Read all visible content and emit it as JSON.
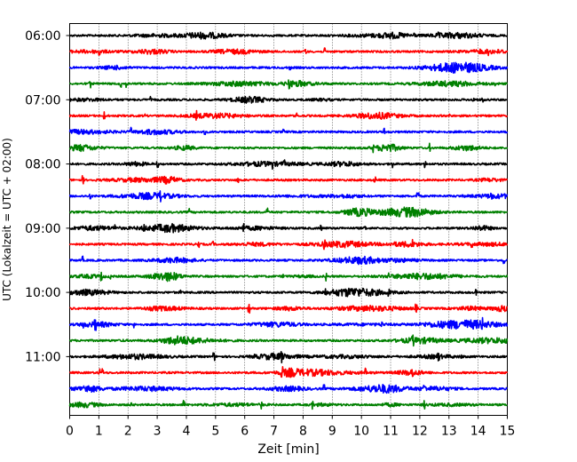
{
  "chart_data": {
    "type": "line",
    "xlabel": "Zeit  [min]",
    "ylabel": "UTC (Lokalzeit = UTC + 02:00)",
    "xlim": [
      0,
      15
    ],
    "x_ticks": [
      "0",
      "1",
      "2",
      "3",
      "4",
      "5",
      "6",
      "7",
      "8",
      "9",
      "10",
      "11",
      "12",
      "13",
      "14",
      "15"
    ],
    "y_ticks": [
      "06:00",
      "07:00",
      "08:00",
      "09:00",
      "10:00",
      "11:00"
    ],
    "grid": "vertical dotted lines at each minute",
    "row_minutes": 15,
    "start_time": "06:00",
    "trace_colors": [
      "#000000",
      "#ff0000",
      "#0000ff",
      "#008000"
    ],
    "rows": [
      {
        "start": "06:00",
        "color": "#000000"
      },
      {
        "start": "06:15",
        "color": "#ff0000"
      },
      {
        "start": "06:30",
        "color": "#0000ff"
      },
      {
        "start": "06:45",
        "color": "#008000"
      },
      {
        "start": "07:00",
        "color": "#000000"
      },
      {
        "start": "07:15",
        "color": "#ff0000"
      },
      {
        "start": "07:30",
        "color": "#0000ff"
      },
      {
        "start": "07:45",
        "color": "#008000"
      },
      {
        "start": "08:00",
        "color": "#000000"
      },
      {
        "start": "08:15",
        "color": "#ff0000"
      },
      {
        "start": "08:30",
        "color": "#0000ff"
      },
      {
        "start": "08:45",
        "color": "#008000"
      },
      {
        "start": "09:00",
        "color": "#000000"
      },
      {
        "start": "09:15",
        "color": "#ff0000"
      },
      {
        "start": "09:30",
        "color": "#0000ff"
      },
      {
        "start": "09:45",
        "color": "#008000"
      },
      {
        "start": "10:00",
        "color": "#000000"
      },
      {
        "start": "10:15",
        "color": "#ff0000"
      },
      {
        "start": "10:30",
        "color": "#0000ff"
      },
      {
        "start": "10:45",
        "color": "#008000"
      },
      {
        "start": "11:00",
        "color": "#000000"
      },
      {
        "start": "11:15",
        "color": "#ff0000"
      },
      {
        "start": "11:30",
        "color": "#0000ff"
      },
      {
        "start": "11:45",
        "color": "#008000"
      }
    ]
  }
}
